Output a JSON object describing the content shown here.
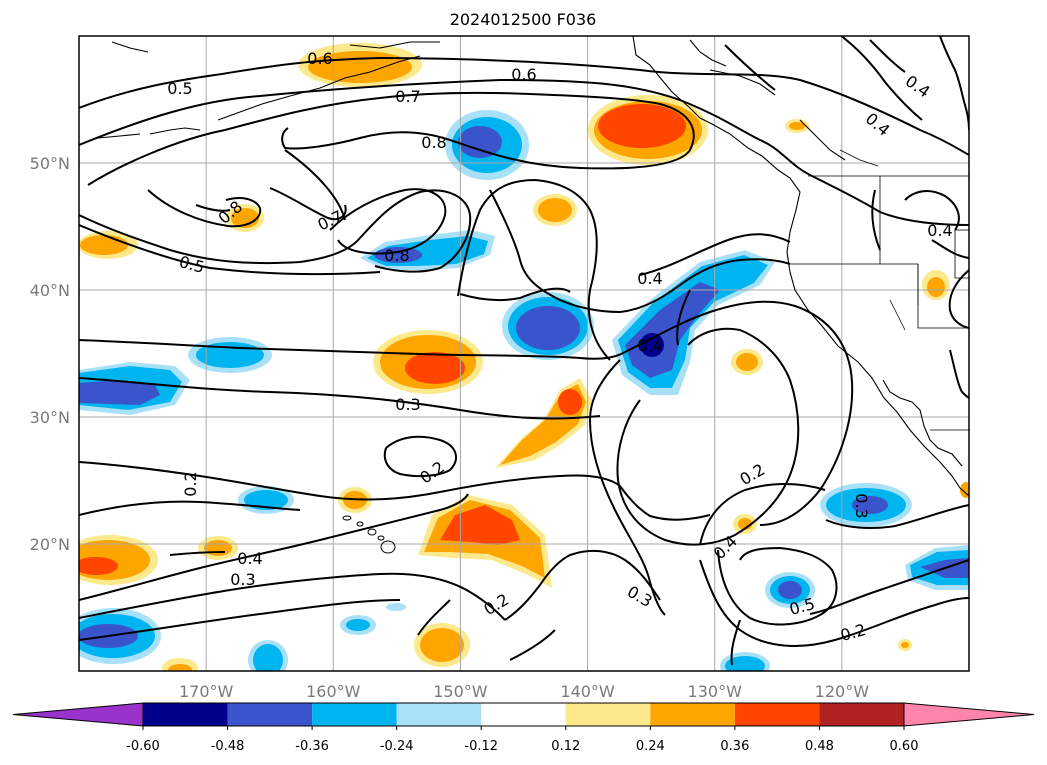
{
  "title": "2024012500 F036",
  "lat_labels": [
    "50°N",
    "40°N",
    "30°N",
    "20°N"
  ],
  "lon_labels": [
    "170°W",
    "160°W",
    "150°W",
    "140°W",
    "130°W",
    "120°W"
  ],
  "contour_labels": [
    "0.6",
    "0.5",
    "0.6",
    "0.7",
    "0.8",
    "0.8",
    "0.7",
    "0.8",
    "0.5",
    "0.4",
    "0.4",
    "0.4",
    "0.4",
    "0.4",
    "0.3",
    "0.2",
    "0.2",
    "0.4",
    "0.3",
    "0.2",
    "0.2",
    "0.4",
    "0.3",
    "0.5",
    "0.2",
    "0.3"
  ],
  "colorbar": {
    "tick_labels": [
      "-0.60",
      "-0.48",
      "-0.36",
      "-0.24",
      "-0.12",
      "0.12",
      "0.24",
      "0.36",
      "0.48",
      "0.60"
    ],
    "colors": [
      "#9933cc",
      "#00008b",
      "#3a55cc",
      "#00b4f0",
      "#a8e0f8",
      "#ffffff",
      "#fce98c",
      "#ffa500",
      "#ff4500",
      "#b22222",
      "#ff85ab"
    ]
  },
  "chart_data": {
    "type": "heatmap",
    "title": "2024012500 F036",
    "extent": {
      "lon": [
        -180,
        -110
      ],
      "lat": [
        10,
        60
      ]
    },
    "grid": true,
    "colorbar_levels": [
      -0.6,
      -0.48,
      -0.36,
      -0.24,
      -0.12,
      0.12,
      0.24,
      0.36,
      0.48,
      0.6
    ],
    "contour_levels": [
      0.2,
      0.3,
      0.4,
      0.5,
      0.6,
      0.7,
      0.8
    ]
  }
}
